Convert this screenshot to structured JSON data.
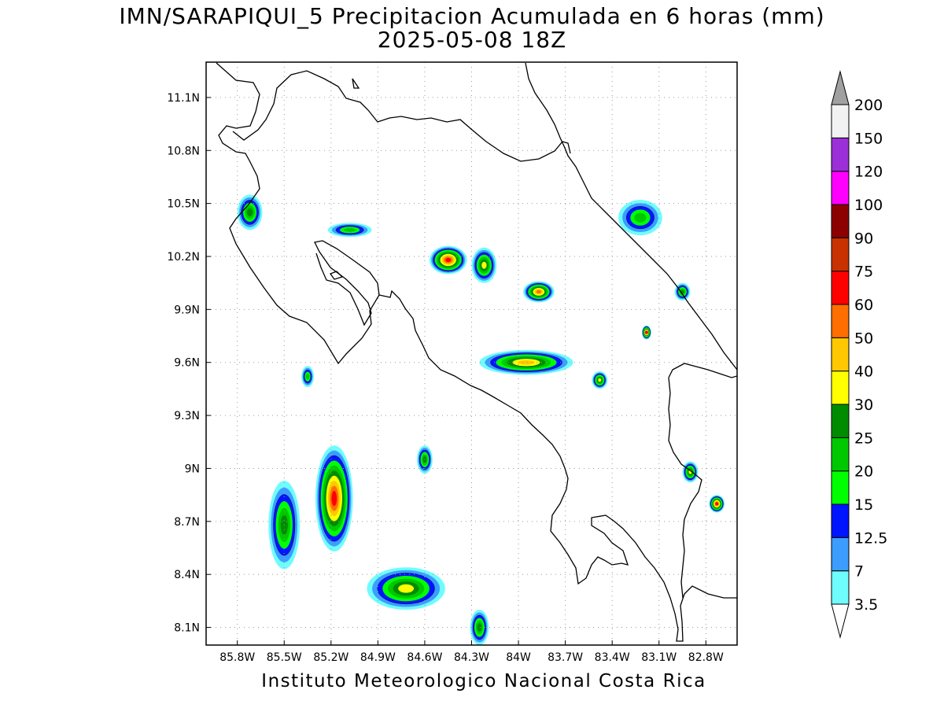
{
  "title": "IMN/SARAPIQUI_5 Precipitacion Acumulada en 6 horas (mm)",
  "subtitle": "2025-05-08 18Z",
  "footer": "Instituto Meteorologico Nacional Costa Rica",
  "map": {
    "lon_range": [
      -86.0,
      -82.6
    ],
    "lat_range": [
      8.0,
      11.3
    ],
    "x_ticks": [
      "85.8W",
      "85.5W",
      "85.2W",
      "84.9W",
      "84.6W",
      "84.3W",
      "84W",
      "83.7W",
      "83.4W",
      "83.1W",
      "82.8W"
    ],
    "x_tick_values": [
      -85.8,
      -85.5,
      -85.2,
      -84.9,
      -84.6,
      -84.3,
      -84.0,
      -83.7,
      -83.4,
      -83.1,
      -82.8
    ],
    "y_ticks": [
      "11.1N",
      "10.8N",
      "10.5N",
      "10.2N",
      "9.9N",
      "9.6N",
      "9.3N",
      "9N",
      "8.7N",
      "8.4N",
      "8.1N"
    ],
    "y_tick_values": [
      11.1,
      10.8,
      10.5,
      10.2,
      9.9,
      9.6,
      9.3,
      9.0,
      8.7,
      8.4,
      8.1
    ],
    "grid": true
  },
  "legend": {
    "levels": [
      "3.5",
      "7",
      "12.5",
      "15",
      "20",
      "25",
      "30",
      "40",
      "50",
      "60",
      "75",
      "90",
      "100",
      "120",
      "150",
      "200"
    ],
    "colors": [
      "#ffffff",
      "#6efcfc",
      "#3c9dff",
      "#0015ff",
      "#00ff00",
      "#00c800",
      "#008c00",
      "#ffff00",
      "#ffc800",
      "#ff6e00",
      "#ff0000",
      "#c83200",
      "#8c0000",
      "#ff00ff",
      "#9b30d8",
      "#f2f2f2",
      "#a0a0a0"
    ]
  },
  "features": {
    "cells": [
      {
        "lon": -85.72,
        "lat": 10.45,
        "rx": 0.08,
        "ry": 0.1,
        "level": 6
      },
      {
        "lon": -85.08,
        "lat": 10.35,
        "rx": 0.14,
        "ry": 0.04,
        "level": 5
      },
      {
        "lon": -84.45,
        "lat": 10.18,
        "rx": 0.12,
        "ry": 0.08,
        "level": 10
      },
      {
        "lon": -84.22,
        "lat": 10.15,
        "rx": 0.08,
        "ry": 0.1,
        "level": 7
      },
      {
        "lon": -83.87,
        "lat": 10.0,
        "rx": 0.1,
        "ry": 0.06,
        "level": 9
      },
      {
        "lon": -83.95,
        "lat": 9.6,
        "rx": 0.3,
        "ry": 0.07,
        "level": 8
      },
      {
        "lon": -83.48,
        "lat": 9.5,
        "rx": 0.05,
        "ry": 0.05,
        "level": 7
      },
      {
        "lon": -83.22,
        "lat": 10.42,
        "rx": 0.14,
        "ry": 0.1,
        "level": 5
      },
      {
        "lon": -85.18,
        "lat": 8.83,
        "rx": 0.12,
        "ry": 0.3,
        "level": 10
      },
      {
        "lon": -85.5,
        "lat": 8.68,
        "rx": 0.1,
        "ry": 0.25,
        "level": 6
      },
      {
        "lon": -84.72,
        "lat": 8.32,
        "rx": 0.25,
        "ry": 0.12,
        "level": 7
      },
      {
        "lon": -84.25,
        "lat": 8.1,
        "rx": 0.06,
        "ry": 0.1,
        "level": 6
      },
      {
        "lon": -82.73,
        "lat": 8.8,
        "rx": 0.05,
        "ry": 0.05,
        "level": 10
      },
      {
        "lon": -82.9,
        "lat": 8.98,
        "rx": 0.05,
        "ry": 0.06,
        "level": 7
      },
      {
        "lon": -83.18,
        "lat": 9.77,
        "rx": 0.03,
        "ry": 0.04,
        "level": 10
      },
      {
        "lon": -82.95,
        "lat": 10.0,
        "rx": 0.05,
        "ry": 0.05,
        "level": 6
      },
      {
        "lon": -85.35,
        "lat": 9.52,
        "rx": 0.04,
        "ry": 0.06,
        "level": 5
      },
      {
        "lon": -84.6,
        "lat": 9.05,
        "rx": 0.05,
        "ry": 0.08,
        "level": 6
      }
    ]
  }
}
